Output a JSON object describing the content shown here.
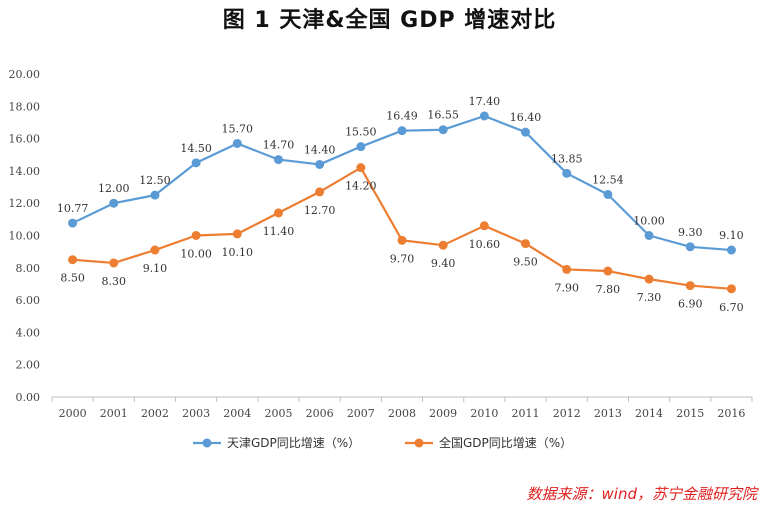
{
  "page": {
    "title": "图 1   天津&全国 GDP 增速对比",
    "source": "数据来源：wind，苏宁金融研究院"
  },
  "chart_data": {
    "type": "line",
    "title": "图 1   天津&全国 GDP 增速对比",
    "xlabel": "",
    "ylabel": "",
    "categories": [
      "2000",
      "2001",
      "2002",
      "2003",
      "2004",
      "2005",
      "2006",
      "2007",
      "2008",
      "2009",
      "2010",
      "2011",
      "2012",
      "2013",
      "2014",
      "2015",
      "2016"
    ],
    "ylim": [
      0,
      20
    ],
    "yticks": [
      "0.00",
      "2.00",
      "4.00",
      "6.00",
      "8.00",
      "10.00",
      "12.00",
      "14.00",
      "16.00",
      "18.00",
      "20.00"
    ],
    "grid": false,
    "legend_position": "bottom",
    "series": [
      {
        "name": "天津GDP同比增速（%）",
        "color": "#5b9bd5",
        "values": [
          10.77,
          12.0,
          12.5,
          14.5,
          15.7,
          14.7,
          14.4,
          15.5,
          16.49,
          16.55,
          17.4,
          16.4,
          13.85,
          12.54,
          10.0,
          9.3,
          9.1
        ],
        "labels": [
          "10.77",
          "12.00",
          "12.50",
          "14.50",
          "15.70",
          "14.70",
          "14.40",
          "15.50",
          "16.49",
          "16.55",
          "17.40",
          "16.40",
          "13.85",
          "12.54",
          "10.00",
          "9.30",
          "9.10"
        ]
      },
      {
        "name": "全国GDP同比增速（%）",
        "color": "#ed7d31",
        "values": [
          8.5,
          8.3,
          9.1,
          10.0,
          10.1,
          11.4,
          12.7,
          14.2,
          9.7,
          9.4,
          10.6,
          9.5,
          7.9,
          7.8,
          7.3,
          6.9,
          6.7
        ],
        "labels": [
          "8.50",
          "8.30",
          "9.10",
          "10.00",
          "10.10",
          "11.40",
          "12.70",
          "14.20",
          "9.70",
          "9.40",
          "10.60",
          "9.50",
          "7.90",
          "7.80",
          "7.30",
          "6.90",
          "6.70"
        ]
      }
    ]
  }
}
